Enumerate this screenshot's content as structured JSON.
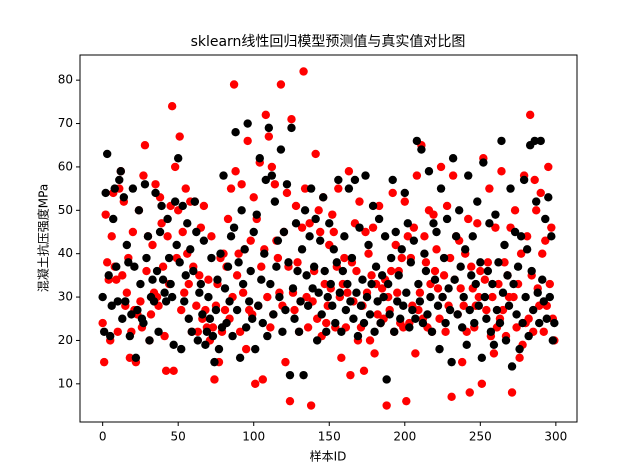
{
  "chart_data": {
    "type": "scatter",
    "title": "sklearn线性回归模型预测值与真实值对比图",
    "x_label": "样本ID",
    "y_label": "混凝土抗压强度MPa",
    "x": [
      0,
      1,
      2,
      3,
      4,
      5,
      6,
      7,
      8,
      9,
      10,
      11,
      12,
      13,
      14,
      15,
      16,
      17,
      18,
      19,
      20,
      21,
      22,
      23,
      24,
      25,
      26,
      27,
      28,
      29,
      30,
      31,
      32,
      33,
      34,
      35,
      36,
      37,
      38,
      39,
      40,
      41,
      42,
      43,
      44,
      45,
      46,
      47,
      48,
      49,
      50,
      51,
      52,
      53,
      54,
      55,
      56,
      57,
      58,
      59,
      60,
      61,
      62,
      63,
      64,
      65,
      66,
      67,
      68,
      69,
      70,
      71,
      72,
      73,
      74,
      75,
      76,
      77,
      78,
      79,
      80,
      81,
      82,
      83,
      84,
      85,
      86,
      87,
      88,
      89,
      90,
      91,
      92,
      93,
      94,
      95,
      96,
      97,
      98,
      99,
      100,
      101,
      102,
      103,
      104,
      105,
      106,
      107,
      108,
      109,
      110,
      111,
      112,
      113,
      114,
      115,
      116,
      117,
      118,
      119,
      120,
      121,
      122,
      123,
      124,
      125,
      126,
      127,
      128,
      129,
      130,
      131,
      132,
      133,
      134,
      135,
      136,
      137,
      138,
      139,
      140,
      141,
      142,
      143,
      144,
      145,
      146,
      147,
      148,
      149,
      150,
      151,
      152,
      153,
      154,
      155,
      156,
      157,
      158,
      159,
      160,
      161,
      162,
      163,
      164,
      165,
      166,
      167,
      168,
      169,
      170,
      171,
      172,
      173,
      174,
      175,
      176,
      177,
      178,
      179,
      180,
      181,
      182,
      183,
      184,
      185,
      186,
      187,
      188,
      189,
      190,
      191,
      192,
      193,
      194,
      195,
      196,
      197,
      198,
      199,
      200,
      201,
      202,
      203,
      204,
      205,
      206,
      207,
      208,
      209,
      210,
      211,
      212,
      213,
      214,
      215,
      216,
      217,
      218,
      219,
      220,
      221,
      222,
      223,
      224,
      225,
      226,
      227,
      228,
      229,
      230,
      231,
      232,
      233,
      234,
      235,
      236,
      237,
      238,
      239,
      240,
      241,
      242,
      243,
      244,
      245,
      246,
      247,
      248,
      249,
      250,
      251,
      252,
      253,
      254,
      255,
      256,
      257,
      258,
      259,
      260,
      261,
      262,
      263,
      264,
      265,
      266,
      267,
      268,
      269,
      270,
      271,
      272,
      273,
      274,
      275,
      276,
      277,
      278,
      279,
      280,
      281,
      282,
      283,
      284,
      285,
      286,
      287,
      288,
      289,
      290,
      291,
      292,
      293,
      294,
      295,
      296,
      297,
      298,
      299
    ],
    "series": [
      {
        "color": "#ff0000",
        "values": [
          24,
          15,
          49,
          38,
          34,
          20,
          44,
          54,
          37,
          34,
          22,
          55,
          59,
          35,
          52,
          28,
          31,
          39,
          16,
          22,
          45,
          27,
          15,
          26,
          50,
          29,
          23,
          58,
          65,
          36,
          44,
          20,
          26,
          42,
          31,
          56,
          30,
          28,
          53,
          47,
          37,
          21,
          13,
          44,
          33,
          51,
          74,
          13,
          60,
          39,
          50,
          67,
          27,
          45,
          31,
          55,
          40,
          33,
          52,
          22,
          37,
          52,
          28,
          22,
          35,
          46,
          25,
          51,
          27,
          23,
          34,
          20,
          44,
          23,
          11,
          28,
          33,
          15,
          39,
          22,
          40,
          27,
          37,
          48,
          25,
          55,
          30,
          79,
          59,
          35,
          40,
          22,
          56,
          31,
          41,
          18,
          66,
          27,
          43,
          26,
          53,
          10,
          48,
          28,
          61,
          37,
          11,
          41,
          72,
          30,
          67,
          23,
          60,
          26,
          56,
          43,
          39,
          31,
          79,
          28,
          45,
          15,
          54,
          37,
          6,
          71,
          31,
          27,
          51,
          38,
          22,
          29,
          46,
          82,
          55,
          30,
          23,
          47,
          5,
          29,
          36,
          63,
          25,
          50,
          45,
          21,
          53,
          33,
          24,
          28,
          42,
          32,
          49,
          45,
          23,
          37,
          55,
          30,
          16,
          33,
          39,
          23,
          31,
          59,
          12,
          38,
          29,
          47,
          36,
          20,
          52,
          23,
          28,
          13,
          45,
          31,
          40,
          20,
          35,
          46,
          17,
          33,
          26,
          51,
          24,
          32,
          25,
          34,
          5,
          30,
          27,
          36,
          54,
          22,
          42,
          31,
          36,
          24,
          39,
          23,
          52,
          6,
          44,
          24,
          39,
          28,
          46,
          17,
          58,
          27,
          31,
          65,
          25,
          44,
          38,
          23,
          50,
          33,
          22,
          49,
          36,
          41,
          32,
          25,
          60,
          30,
          35,
          22,
          51,
          28,
          39,
          7,
          58,
          34,
          44,
          26,
          43,
          32,
          15,
          28,
          40,
          22,
          48,
          8,
          37,
          32,
          23,
          28,
          47,
          30,
          36,
          10,
          62,
          34,
          27,
          38,
          55,
          21,
          30,
          17,
          46,
          23,
          33,
          25,
          59,
          27,
          38,
          21,
          35,
          30,
          46,
          8,
          30,
          50,
          23,
          33,
          16,
          40,
          19,
          58,
          24,
          44,
          25,
          72,
          35,
          22,
          57,
          50,
          32,
          28,
          54,
          40,
          22,
          43,
          28,
          60,
          33,
          46,
          25,
          20
        ]
      },
      {
        "color": "#000000",
        "values": [
          30,
          22,
          54,
          63,
          35,
          21,
          28,
          48,
          55,
          37,
          29,
          57,
          59,
          25,
          53,
          29,
          42,
          38,
          21,
          26,
          55,
          37,
          16,
          27,
          50,
          33,
          25,
          24,
          56,
          39,
          44,
          20,
          30,
          34,
          29,
          54,
          36,
          22,
          45,
          51,
          34,
          31,
          29,
          48,
          39,
          33,
          30,
          19,
          52,
          42,
          62,
          38,
          18,
          51,
          29,
          35,
          47,
          25,
          41,
          22,
          36,
          52,
          45,
          20,
          31,
          33,
          26,
          43,
          19,
          22,
          30,
          25,
          39,
          21,
          15,
          27,
          34,
          18,
          40,
          23,
          58,
          32,
          24,
          37,
          29,
          44,
          21,
          46,
          68,
          27,
          38,
          16,
          50,
          33,
          41,
          23,
          70,
          29,
          36,
          25,
          45,
          18,
          49,
          28,
          62,
          34,
          24,
          40,
          57,
          21,
          69,
          33,
          58,
          26,
          52,
          37,
          43,
          30,
          64,
          22,
          45,
          27,
          56,
          38,
          12,
          69,
          32,
          25,
          47,
          36,
          22,
          29,
          41,
          12,
          50,
          35,
          28,
          44,
          55,
          32,
          37,
          48,
          20,
          31,
          43,
          26,
          53,
          36,
          22,
          30,
          47,
          33,
          28,
          41,
          24,
          38,
          57,
          31,
          22,
          36,
          44,
          27,
          33,
          55,
          29,
          39,
          25,
          57,
          31,
          21,
          46,
          28,
          34,
          24,
          58,
          30,
          42,
          26,
          33,
          51,
          22,
          37,
          29,
          48,
          24,
          35,
          30,
          44,
          11,
          33,
          26,
          39,
          57,
          22,
          45,
          29,
          35,
          25,
          41,
          28,
          54,
          31,
          47,
          23,
          38,
          27,
          43,
          25,
          66,
          33,
          29,
          64,
          24,
          40,
          36,
          26,
          59,
          30,
          22,
          47,
          34,
          45,
          28,
          18,
          55,
          30,
          39,
          24,
          48,
          32,
          27,
          15,
          62,
          34,
          44,
          26,
          50,
          37,
          23,
          30,
          41,
          19,
          58,
          27,
          35,
          44,
          24,
          33,
          52,
          28,
          38,
          16,
          61,
          30,
          25,
          36,
          47,
          22,
          33,
          19,
          49,
          27,
          38,
          24,
          66,
          31,
          42,
          20,
          35,
          28,
          55,
          14,
          33,
          45,
          26,
          37,
          18,
          44,
          24,
          57,
          30,
          41,
          21,
          65,
          36,
          27,
          66,
          52,
          31,
          24,
          66,
          34,
          29,
          48,
          25,
          53,
          30,
          44,
          20,
          24
        ]
      }
    ],
    "xlim": [
      -15,
      314
    ],
    "ylim": [
      1.2,
      85.8
    ],
    "xticks": [
      0,
      50,
      100,
      150,
      200,
      250,
      300
    ],
    "yticks": [
      10,
      20,
      30,
      40,
      50,
      60,
      70,
      80
    ]
  }
}
